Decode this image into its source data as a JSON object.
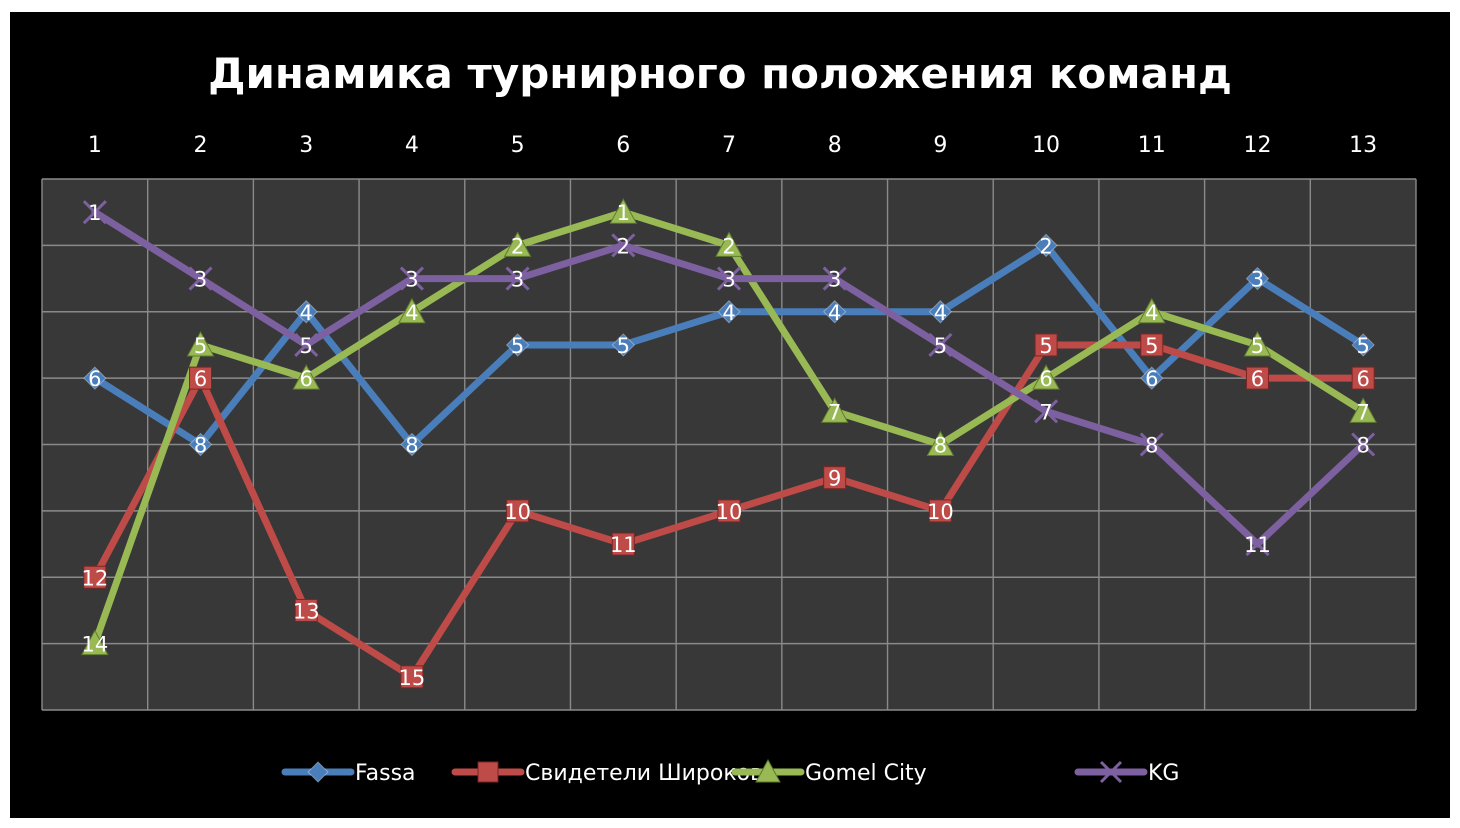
{
  "chart_data": {
    "type": "line",
    "title": "Динамика турнирного положения команд",
    "x": [
      1,
      2,
      3,
      4,
      5,
      6,
      7,
      8,
      9,
      10,
      11,
      12,
      13
    ],
    "x_tick_labels": [
      "1",
      "2",
      "3",
      "4",
      "5",
      "6",
      "7",
      "8",
      "9",
      "10",
      "11",
      "12",
      "13"
    ],
    "x_axis_position": "top",
    "y_reversed": true,
    "ylim": [
      16,
      0
    ],
    "y_gridlines": [
      0,
      2,
      4,
      6,
      8,
      10,
      12,
      14,
      16
    ],
    "y_tick_labels_visible": false,
    "grid": true,
    "legend_position": "bottom",
    "data_labels": true,
    "series": [
      {
        "name": "Fassa",
        "color": "#4a7ebb",
        "marker": "diamond",
        "values": [
          6,
          8,
          4,
          8,
          5,
          5,
          4,
          4,
          4,
          2,
          6,
          3,
          5
        ]
      },
      {
        "name": "Свидетели  Широкова",
        "color": "#be4b48",
        "marker": "square",
        "values": [
          12,
          6,
          13,
          15,
          10,
          11,
          10,
          9,
          10,
          5,
          5,
          6,
          6
        ]
      },
      {
        "name": "Gomel City",
        "color": "#98b954",
        "marker": "triangle",
        "values": [
          14,
          5,
          6,
          4,
          2,
          1,
          2,
          7,
          8,
          6,
          4,
          5,
          7
        ]
      },
      {
        "name": "KG",
        "color": "#7d60a0",
        "marker": "x",
        "values": [
          1,
          3,
          5,
          3,
          3,
          2,
          3,
          3,
          5,
          7,
          8,
          11,
          8
        ]
      }
    ]
  }
}
